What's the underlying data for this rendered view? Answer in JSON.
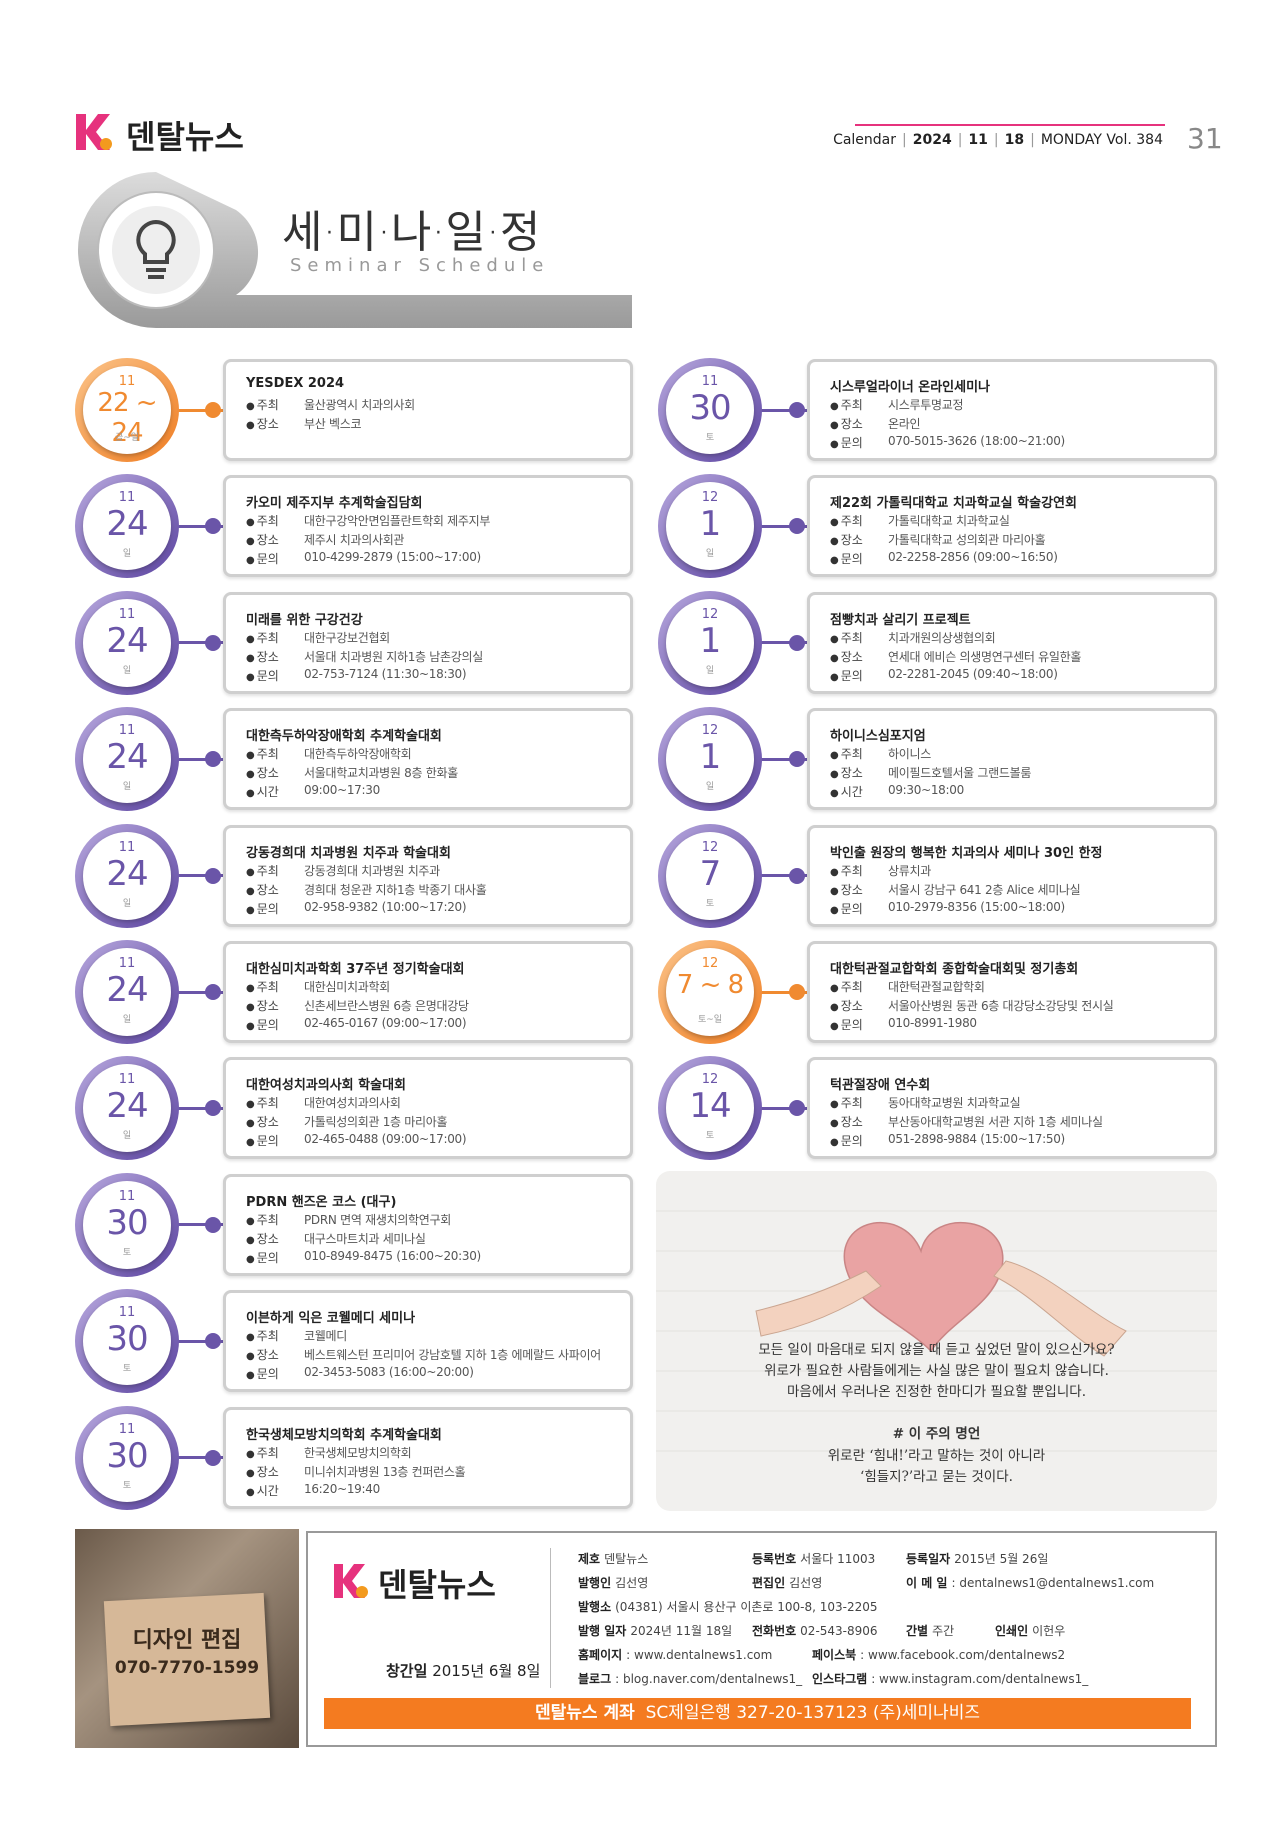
{
  "header": {
    "brand": "덴탈뉴스",
    "calendar": [
      "Calendar",
      "2024",
      "11",
      "18",
      "MONDAY Vol. 384"
    ],
    "page": "31"
  },
  "section": {
    "title": "세·미·나·일·정",
    "subtitle": "Seminar Schedule"
  },
  "events_left": [
    {
      "month": "11",
      "day": "22 ~ 24",
      "weekday": "금~일",
      "highlight": true,
      "title": "YESDEX 2024",
      "rows": [
        [
          "주최",
          "울산광역시 치과의사회"
        ],
        [
          "장소",
          "부산 벡스코"
        ]
      ]
    },
    {
      "month": "11",
      "day": "24",
      "weekday": "일",
      "title": "카오미 제주지부 추계학술집담회",
      "rows": [
        [
          "주최",
          "대한구강악안면임플란트학회 제주지부"
        ],
        [
          "장소",
          "제주시 치과의사회관"
        ],
        [
          "문의",
          "010-4299-2879 (15:00~17:00)"
        ]
      ]
    },
    {
      "month": "11",
      "day": "24",
      "weekday": "일",
      "title": "미래를 위한 구강건강",
      "rows": [
        [
          "주최",
          "대한구강보건협회"
        ],
        [
          "장소",
          "서울대 치과병원 지하1층 남촌강의실"
        ],
        [
          "문의",
          "02-753-7124 (11:30~18:30)"
        ]
      ]
    },
    {
      "month": "11",
      "day": "24",
      "weekday": "일",
      "title": "대한측두하악장애학회 추계학술대회",
      "rows": [
        [
          "주최",
          "대한측두하악장애학회"
        ],
        [
          "장소",
          "서울대학교치과병원 8층 한화홀"
        ],
        [
          "시간",
          "09:00~17:30"
        ]
      ]
    },
    {
      "month": "11",
      "day": "24",
      "weekday": "일",
      "title": "강동경희대 치과병원 치주과 학술대회",
      "rows": [
        [
          "주최",
          "강동경희대 치과병원 치주과"
        ],
        [
          "장소",
          "경희대 청운관 지하1층 박종기 대사홀"
        ],
        [
          "문의",
          "02-958-9382 (10:00~17:20)"
        ]
      ]
    },
    {
      "month": "11",
      "day": "24",
      "weekday": "일",
      "title": "대한심미치과학회 37주년 정기학술대회",
      "rows": [
        [
          "주최",
          "대한심미치과학회"
        ],
        [
          "장소",
          "신촌세브란스병원 6층 은명대강당"
        ],
        [
          "문의",
          "02-465-0167 (09:00~17:00)"
        ]
      ]
    },
    {
      "month": "11",
      "day": "24",
      "weekday": "일",
      "title": "대한여성치과의사회 학술대회",
      "rows": [
        [
          "주최",
          "대한여성치과의사회"
        ],
        [
          "장소",
          "가톨릭성의회관 1층 마리아홀"
        ],
        [
          "문의",
          "02-465-0488 (09:00~17:00)"
        ]
      ]
    },
    {
      "month": "11",
      "day": "30",
      "weekday": "토",
      "title": "PDRN 핸즈온 코스 (대구)",
      "rows": [
        [
          "주최",
          "PDRN 면역 재생치의학연구회"
        ],
        [
          "장소",
          "대구스마트치과 세미나실"
        ],
        [
          "문의",
          "010-8949-8475 (16:00~20:30)"
        ]
      ]
    },
    {
      "month": "11",
      "day": "30",
      "weekday": "토",
      "title": "이븐하게 익은 코웰메디 세미나",
      "rows": [
        [
          "주최",
          "코웰메디"
        ],
        [
          "장소",
          "베스트웨스턴 프리미어 강남호텔 지하 1층 에메랄드 사파이어"
        ],
        [
          "문의",
          "02-3453-5083 (16:00~20:00)"
        ]
      ]
    },
    {
      "month": "11",
      "day": "30",
      "weekday": "토",
      "title": "한국생체모방치의학회 추계학술대회",
      "rows": [
        [
          "주최",
          "한국생체모방치의학회"
        ],
        [
          "장소",
          "미니쉬치과병원 13층 컨퍼런스홀"
        ],
        [
          "시간",
          "16:20~19:40"
        ]
      ]
    }
  ],
  "events_right": [
    {
      "month": "11",
      "day": "30",
      "weekday": "토",
      "title": "시스루얼라이너 온라인세미나",
      "rows": [
        [
          "주최",
          "시스루투명교정"
        ],
        [
          "장소",
          "온라인"
        ],
        [
          "문의",
          "070-5015-3626 (18:00~21:00)"
        ]
      ]
    },
    {
      "month": "12",
      "day": "1",
      "weekday": "일",
      "title": "제22회 가톨릭대학교 치과학교실 학술강연회",
      "rows": [
        [
          "주최",
          "가톨릭대학교 치과학교실"
        ],
        [
          "장소",
          "가톨릭대학교 성의회관 마리아홀"
        ],
        [
          "문의",
          "02-2258-2856 (09:00~16:50)"
        ]
      ]
    },
    {
      "month": "12",
      "day": "1",
      "weekday": "일",
      "title": "점빵치과 살리기 프로젝트",
      "rows": [
        [
          "주최",
          "치과개원의상생협의회"
        ],
        [
          "장소",
          "연세대 에비슨 의생명연구센터 유일한홀"
        ],
        [
          "문의",
          "02-2281-2045 (09:40~18:00)"
        ]
      ]
    },
    {
      "month": "12",
      "day": "1",
      "weekday": "일",
      "title": "하이니스심포지엄",
      "rows": [
        [
          "주최",
          "하이니스"
        ],
        [
          "장소",
          "메이필드호텔서울 그랜드볼룸"
        ],
        [
          "시간",
          "09:30~18:00"
        ]
      ]
    },
    {
      "month": "12",
      "day": "7",
      "weekday": "토",
      "title": "박인출 원장의 행복한 치과의사 세미나 30인 한정",
      "rows": [
        [
          "주최",
          "상류치과"
        ],
        [
          "장소",
          "서울시 강남구 641 2층 Alice 세미나실"
        ],
        [
          "문의",
          "010-2979-8356 (15:00~18:00)"
        ]
      ]
    },
    {
      "month": "12",
      "day": "7 ~ 8",
      "weekday": "토~일",
      "highlight": true,
      "title": "대한턱관절교합학회 종합학술대회및 정기총회",
      "rows": [
        [
          "주최",
          "대한턱관절교합학회"
        ],
        [
          "장소",
          "서울아산병원 동관 6층 대강당소강당및 전시실"
        ],
        [
          "문의",
          "010-8991-1980"
        ]
      ]
    },
    {
      "month": "12",
      "day": "14",
      "weekday": "토",
      "title": "턱관절장애 연수회",
      "rows": [
        [
          "주최",
          "동아대학교병원 치과학교실"
        ],
        [
          "장소",
          "부산동아대학교병원 서관 지하 1층 세미나실"
        ],
        [
          "문의",
          "051-2898-9884 (15:00~17:50)"
        ]
      ]
    }
  ],
  "quote": {
    "intro": [
      "모든 일이 마음대로 되지 않을 때 듣고 싶었던 말이 있으신가요?",
      "위로가 필요한 사람들에게는 사실 많은 말이 필요치 않습니다.",
      "마음에서 우러나온 진정한 한마디가 필요할 뿐입니다."
    ],
    "heading": "# 이 주의 명언",
    "lines": [
      "위로란 ‘힘내!’라고 말하는 것이 아니라",
      "‘힘들지?’라고 묻는 것이다."
    ]
  },
  "ad": {
    "title": "디자인 편집",
    "phone": "070-7770-1599"
  },
  "info": {
    "brand": "덴탈뉴스",
    "founded_label": "창간일",
    "founded": "2015년 6월 8일",
    "rows": [
      [
        [
          "제호",
          "덴탈뉴스"
        ],
        [
          "등록번호",
          "서울다 11003"
        ],
        [
          "등록일자",
          "2015년 5월 26일"
        ]
      ],
      [
        [
          "발행인",
          "김선영"
        ],
        [
          "편집인",
          "김선영"
        ],
        [
          "이 메 일",
          ": dentalnews1@dentalnews1.com"
        ]
      ],
      [
        [
          "발행소",
          "(04381) 서울시 용산구 이촌로 100-8, 103-2205"
        ]
      ],
      [
        [
          "발행 일자",
          "2024년 11월 18일"
        ],
        [
          "전화번호",
          "02-543-8906"
        ],
        [
          "간별",
          "주간"
        ],
        [
          "인쇄인",
          "이헌우"
        ]
      ],
      [
        [
          "홈페이지",
          ": www.dentalnews1.com"
        ],
        [
          "페이스북",
          ": www.facebook.com/dentalnews2"
        ]
      ],
      [
        [
          "블로그",
          ": blog.naver.com/dentalnews1_"
        ],
        [
          "인스타그램",
          ": www.instagram.com/dentalnews1_"
        ]
      ]
    ],
    "bank_label": "덴탈뉴스 계좌",
    "bank": "SC제일은행 327-20-137123 (주)세미나비즈"
  }
}
